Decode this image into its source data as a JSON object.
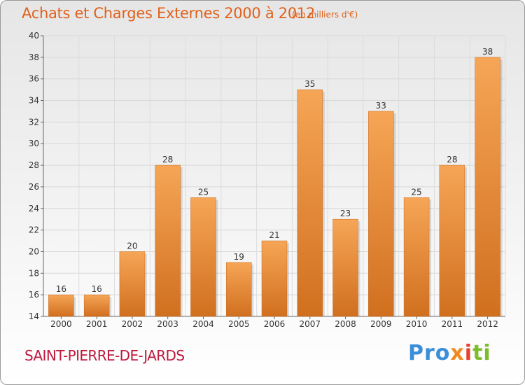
{
  "header": {
    "title": "Achats et Charges Externes 2000 à 2012",
    "subtitle": "(en milliers d'€)"
  },
  "footer": {
    "commune": "SAINT-PIERRE-DE-JARDS",
    "logo_parts": [
      "Pro",
      "x",
      "i",
      "ti"
    ]
  },
  "colors": {
    "bar_top": "#f6a556",
    "bar_bottom": "#d0701f",
    "title": "#e0611c",
    "commune": "#c0183c"
  },
  "chart_data": {
    "type": "bar",
    "title": "Achats et Charges Externes 2000 à 2012",
    "subtitle": "(en milliers d'€)",
    "categories": [
      "2000",
      "2001",
      "2002",
      "2003",
      "2004",
      "2005",
      "2006",
      "2007",
      "2008",
      "2009",
      "2010",
      "2011",
      "2012"
    ],
    "values": [
      16,
      16,
      20,
      28,
      25,
      19,
      21,
      35,
      23,
      33,
      25,
      28,
      38
    ],
    "ylim": [
      14,
      40
    ],
    "yticks": [
      14,
      16,
      18,
      20,
      22,
      24,
      26,
      28,
      30,
      32,
      34,
      36,
      38,
      40
    ],
    "grid": true,
    "data_labels": true,
    "xlabel": "",
    "ylabel": ""
  }
}
